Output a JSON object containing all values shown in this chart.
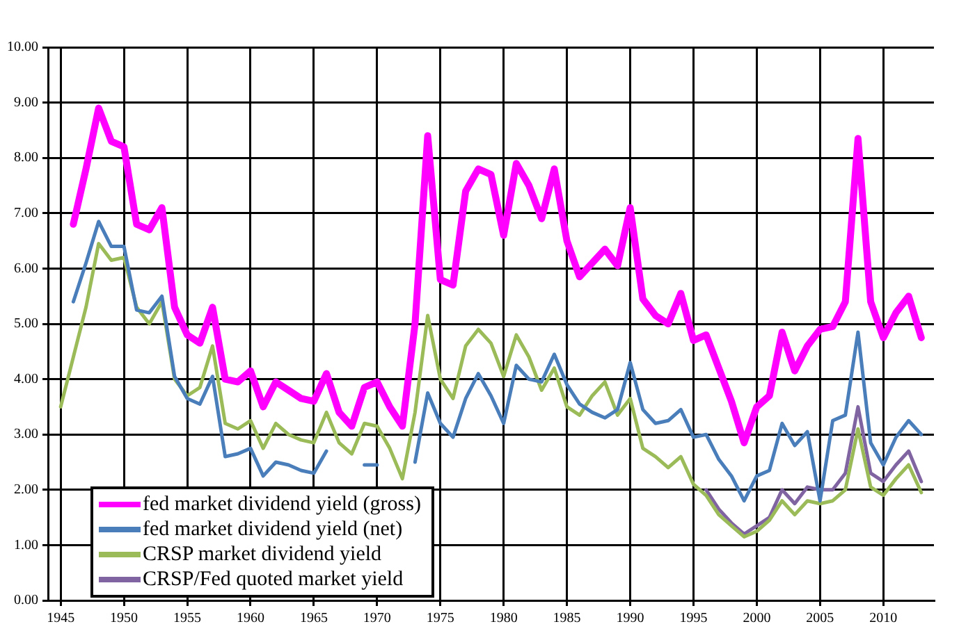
{
  "chart_data": {
    "type": "line",
    "xlim": [
      1944,
      2014
    ],
    "xticks": [
      1945,
      1950,
      1955,
      1960,
      1965,
      1970,
      1975,
      1980,
      1985,
      1990,
      1995,
      2000,
      2005,
      2010
    ],
    "ylim": [
      0,
      10
    ],
    "yticks": [
      {
        "value": 0,
        "label": "0.00"
      },
      {
        "value": 1,
        "label": "1.00"
      },
      {
        "value": 2,
        "label": "2.00"
      },
      {
        "value": 3,
        "label": "3.00"
      },
      {
        "value": 4,
        "label": "4.00"
      },
      {
        "value": 5,
        "label": "5.00"
      },
      {
        "value": 6,
        "label": "6.00"
      },
      {
        "value": 7,
        "label": "7.00"
      },
      {
        "value": 8,
        "label": "8.00"
      },
      {
        "value": 9,
        "label": "9.00"
      },
      {
        "value": 10,
        "label": "10.00"
      }
    ],
    "grid": true,
    "legend": "bottom left",
    "marker": "none",
    "line_style": "solid",
    "series": [
      {
        "name": "fed market dividend yield (gross)",
        "color": "#ff00ff",
        "x": [
          1946,
          1947,
          1948,
          1949,
          1950,
          1951,
          1952,
          1953,
          1954,
          1955,
          1956,
          1957,
          1958,
          1959,
          1960,
          1961,
          1962,
          1963,
          1964,
          1965,
          1966,
          1967,
          1968,
          1969,
          1970,
          1971,
          1972,
          1973,
          1974,
          1975,
          1976,
          1977,
          1978,
          1979,
          1980,
          1981,
          1982,
          1983,
          1984,
          1985,
          1986,
          1987,
          1988,
          1989,
          1990,
          1991,
          1992,
          1993,
          1994,
          1995,
          1996,
          1997,
          1998,
          1999,
          2000,
          2001,
          2002,
          2003,
          2004,
          2005,
          2006,
          2007,
          2008,
          2009,
          2010,
          2011,
          2012,
          2013
        ],
        "values": [
          6.8,
          7.8,
          8.9,
          8.3,
          8.2,
          6.8,
          6.7,
          7.1,
          5.3,
          4.8,
          4.65,
          5.3,
          4.0,
          3.95,
          4.15,
          3.5,
          3.95,
          3.8,
          3.65,
          3.6,
          4.1,
          3.4,
          3.15,
          3.85,
          3.95,
          3.5,
          3.15,
          5.0,
          8.4,
          5.8,
          5.7,
          7.4,
          7.8,
          7.7,
          6.6,
          7.9,
          7.5,
          6.9,
          7.8,
          6.5,
          5.85,
          6.1,
          6.35,
          6.05,
          7.1,
          5.45,
          5.15,
          5.0,
          5.55,
          4.7,
          4.8,
          4.2,
          3.6,
          2.85,
          3.5,
          3.7,
          4.85,
          4.15,
          4.6,
          4.9,
          4.95,
          5.4,
          8.35,
          5.4,
          4.75,
          5.2,
          5.5,
          4.75
        ]
      },
      {
        "name": "fed market dividend yield (net)",
        "color": "#4a7ebb",
        "x": [
          1946,
          1947,
          1948,
          1949,
          1950,
          1951,
          1952,
          1953,
          1954,
          1955,
          1956,
          1957,
          1958,
          1959,
          1960,
          1961,
          1962,
          1963,
          1964,
          1965,
          1966,
          1967,
          1968,
          1969,
          1970,
          1971,
          1972,
          1973,
          1974,
          1975,
          1976,
          1977,
          1978,
          1979,
          1980,
          1981,
          1982,
          1983,
          1984,
          1985,
          1986,
          1987,
          1988,
          1989,
          1990,
          1991,
          1992,
          1993,
          1994,
          1995,
          1996,
          1997,
          1998,
          1999,
          2000,
          2001,
          2002,
          2003,
          2004,
          2005,
          2006,
          2007,
          2008,
          2009,
          2010,
          2011,
          2012,
          2013
        ],
        "values": [
          5.4,
          6.1,
          6.85,
          6.4,
          6.4,
          5.25,
          5.2,
          5.5,
          4.05,
          3.65,
          3.55,
          4.05,
          2.6,
          2.65,
          2.75,
          2.25,
          2.5,
          2.45,
          2.35,
          2.3,
          2.7,
          null,
          null,
          2.45,
          2.45,
          null,
          null,
          2.5,
          3.75,
          3.2,
          2.95,
          3.65,
          4.1,
          3.7,
          3.2,
          4.25,
          4.0,
          3.95,
          4.45,
          3.9,
          3.55,
          3.4,
          3.3,
          3.45,
          4.3,
          3.45,
          3.2,
          3.25,
          3.45,
          2.95,
          3.0,
          2.55,
          2.25,
          1.8,
          2.25,
          2.35,
          3.2,
          2.8,
          3.05,
          1.8,
          3.25,
          3.35,
          4.85,
          2.85,
          2.45,
          2.95,
          3.25,
          3.0
        ]
      },
      {
        "name": "CRSP market dividend yield",
        "color": "#9bbb59",
        "x": [
          1945,
          1946,
          1947,
          1948,
          1949,
          1950,
          1951,
          1952,
          1953,
          1954,
          1955,
          1956,
          1957,
          1958,
          1959,
          1960,
          1961,
          1962,
          1963,
          1964,
          1965,
          1966,
          1967,
          1968,
          1969,
          1970,
          1971,
          1972,
          1973,
          1974,
          1975,
          1976,
          1977,
          1978,
          1979,
          1980,
          1981,
          1982,
          1983,
          1984,
          1985,
          1986,
          1987,
          1988,
          1989,
          1990,
          1991,
          1992,
          1993,
          1994,
          1995,
          1996,
          1997,
          1998,
          1999,
          2000,
          2001,
          2002,
          2003,
          2004,
          2005,
          2006,
          2007,
          2008,
          2009,
          2010,
          2011,
          2012,
          2013
        ],
        "values": [
          3.5,
          4.4,
          5.3,
          6.45,
          6.15,
          6.2,
          5.3,
          5.0,
          5.4,
          4.0,
          3.7,
          3.85,
          4.6,
          3.2,
          3.1,
          3.25,
          2.75,
          3.2,
          3.0,
          2.9,
          2.85,
          3.4,
          2.85,
          2.65,
          3.2,
          3.15,
          2.75,
          2.2,
          3.4,
          5.15,
          4.0,
          3.65,
          4.6,
          4.9,
          4.65,
          4.05,
          4.8,
          4.4,
          3.8,
          4.2,
          3.5,
          3.35,
          3.7,
          3.95,
          3.35,
          3.65,
          2.75,
          2.6,
          2.4,
          2.6,
          2.1,
          1.9,
          1.55,
          1.35,
          1.15,
          1.25,
          1.45,
          1.8,
          1.55,
          1.8,
          1.75,
          1.8,
          2.0,
          3.1,
          2.05,
          1.9,
          2.2,
          2.45,
          1.95
        ]
      },
      {
        "name": "CRSP/Fed quoted market yield",
        "color": "#8064a2",
        "x": [
          1996,
          1997,
          1998,
          1999,
          2000,
          2001,
          2002,
          2003,
          2004,
          2005,
          2006,
          2007,
          2008,
          2009,
          2010,
          2011,
          2012,
          2013
        ],
        "values": [
          2.0,
          1.65,
          1.4,
          1.2,
          1.35,
          1.5,
          2.0,
          1.75,
          2.05,
          2.0,
          2.0,
          2.3,
          3.5,
          2.3,
          2.15,
          2.45,
          2.7,
          2.15
        ]
      }
    ]
  }
}
